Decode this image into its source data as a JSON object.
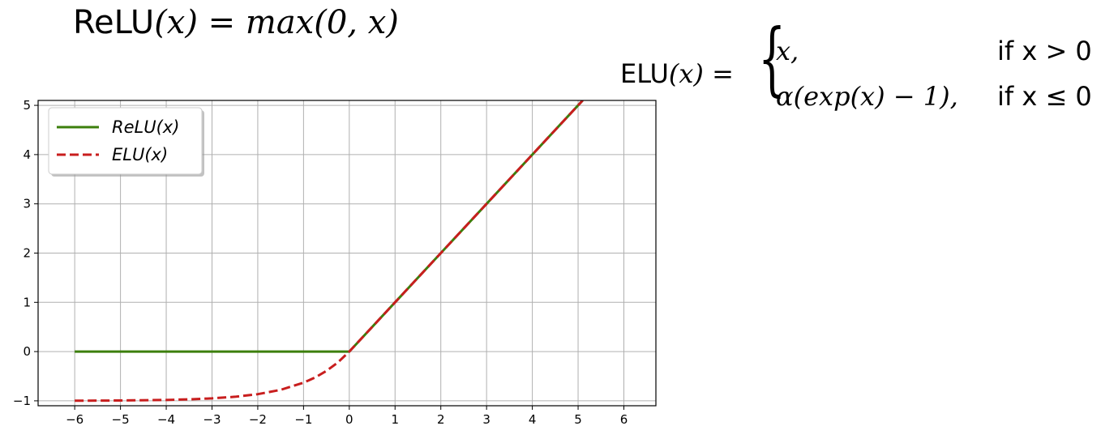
{
  "formulas": {
    "relu": {
      "name": "ReLU",
      "rest": "(x) = max(0, x)"
    },
    "elu": {
      "name": "ELU",
      "lhs_rest": "(x) =",
      "case1_expr": "x,",
      "case1_cond": "if x > 0",
      "case2_expr": "α(exp(x) − 1),",
      "case2_cond": "if x ≤ 0"
    }
  },
  "chart_data": {
    "type": "line",
    "title": "",
    "xlabel": "",
    "ylabel": "",
    "xlim": [
      -6.8,
      6.7
    ],
    "ylim": [
      -1.1,
      5.1
    ],
    "xticks": [
      -6,
      -5,
      -4,
      -3,
      -2,
      -1,
      0,
      1,
      2,
      3,
      4,
      5,
      6
    ],
    "xtick_labels": [
      "−6",
      "−5",
      "−4",
      "−3",
      "−2",
      "−1",
      "0",
      "1",
      "2",
      "3",
      "4",
      "5",
      "6"
    ],
    "yticks": [
      -1,
      0,
      1,
      2,
      3,
      4,
      5
    ],
    "ytick_labels": [
      "−1",
      "0",
      "1",
      "2",
      "3",
      "4",
      "5"
    ],
    "grid": true,
    "legend_position": "top-left",
    "series": [
      {
        "name": "ReLU(x)",
        "color": "#3c7f0c",
        "style": "solid",
        "x": [
          -6,
          -5,
          -4,
          -3,
          -2,
          -1,
          0,
          1,
          2,
          3,
          4,
          5,
          5.1
        ],
        "y": [
          0,
          0,
          0,
          0,
          0,
          0,
          0,
          1,
          2,
          3,
          4,
          5,
          5.1
        ]
      },
      {
        "name": "ELU(x)",
        "color": "#c81e1e",
        "style": "dashed",
        "x": [
          -6,
          -5,
          -4,
          -3.5,
          -3,
          -2.5,
          -2,
          -1.5,
          -1,
          -0.75,
          -0.5,
          -0.25,
          0,
          1,
          2,
          3,
          4,
          5,
          5.1
        ],
        "y": [
          -0.998,
          -0.993,
          -0.982,
          -0.97,
          -0.95,
          -0.918,
          -0.865,
          -0.777,
          -0.632,
          -0.528,
          -0.393,
          -0.221,
          0,
          1,
          2,
          3,
          4,
          5,
          5.1
        ]
      }
    ]
  }
}
